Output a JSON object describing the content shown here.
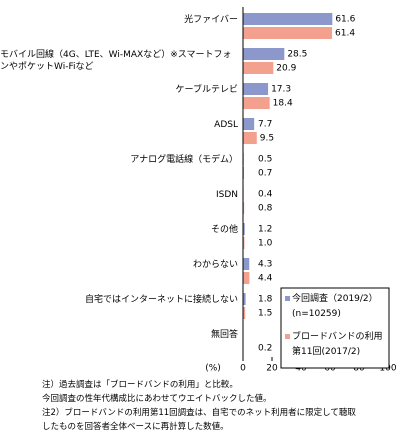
{
  "chart_data": {
    "type": "bar",
    "orientation": "horizontal",
    "categories": [
      "光ファイバー",
      "モバイル回線（4G、LTE、Wi-MAXなど）※スマートフォンやポケットWi-Fiなど",
      "ケーブルテレビ",
      "ADSL",
      "アナログ電話線（モデム）",
      "ISDN",
      "その他",
      "わからない",
      "自宅ではインターネットに接続しない",
      "無回答"
    ],
    "series": [
      {
        "name": "今回調査（2019/2）(n=10259)",
        "color": "#8c98cc",
        "values": [
          61.6,
          28.5,
          17.3,
          7.7,
          0.5,
          0.4,
          1.2,
          4.3,
          1.8,
          null
        ],
        "value_labels": [
          "61.6",
          "28.5",
          "17.3",
          "7.7",
          "0.5",
          "0.4",
          "1.2",
          "4.3",
          "1.8",
          null
        ]
      },
      {
        "name": "ブロードバンドの利用第11回(2017/2)",
        "color": "#f4a08e",
        "values": [
          61.4,
          20.9,
          18.4,
          9.5,
          0.7,
          0.8,
          1.0,
          4.4,
          1.5,
          0.2
        ],
        "value_labels": [
          "61.4",
          "20.9",
          "18.4",
          "9.5",
          "0.7",
          "0.8",
          "1.0",
          "4.4",
          "1.5",
          "0.2"
        ]
      }
    ],
    "xlim": [
      0,
      100
    ],
    "xticks": [
      0,
      20,
      40,
      60,
      80,
      100
    ],
    "x_label": "(%)",
    "notes": [
      "注）過去調査は「ブロードバンドの利用」と比較。",
      "今回調査の性年代構成比にあわせてウエイトバックした値。",
      "注2）ブロードバンドの利用第11回調査は、自宅でのネット利用者に限定して聴取",
      "したものを回答者全体ベースに再計算した数値。"
    ]
  }
}
